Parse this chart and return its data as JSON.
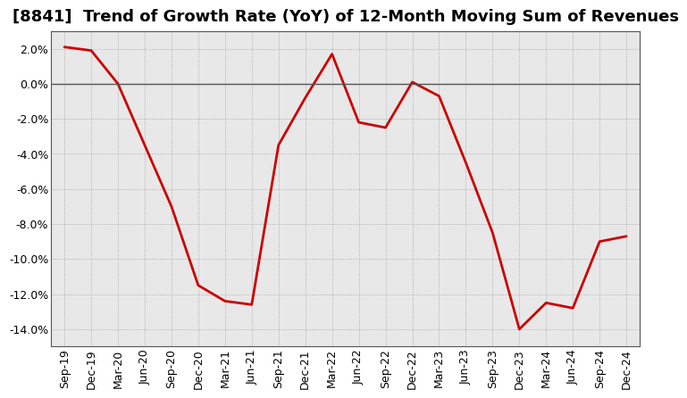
{
  "title": "[8841]  Trend of Growth Rate (YoY) of 12-Month Moving Sum of Revenues",
  "x_labels": [
    "Sep-19",
    "Dec-19",
    "Mar-20",
    "Jun-20",
    "Sep-20",
    "Dec-20",
    "Mar-21",
    "Jun-21",
    "Sep-21",
    "Dec-21",
    "Mar-22",
    "Jun-22",
    "Sep-22",
    "Dec-22",
    "Mar-23",
    "Jun-23",
    "Sep-23",
    "Dec-23",
    "Mar-24",
    "Jun-24",
    "Sep-24",
    "Dec-24"
  ],
  "y_values": [
    2.1,
    1.9,
    0.0,
    -3.5,
    -7.0,
    -11.5,
    -12.4,
    -12.6,
    -3.5,
    -0.8,
    1.7,
    -2.2,
    -2.5,
    0.1,
    -0.7,
    -4.5,
    -8.5,
    -14.0,
    -12.5,
    -12.8,
    -9.0,
    -8.7
  ],
  "line_color": "#cc0000",
  "line_width": 2.0,
  "ylim": [
    -15.0,
    3.0
  ],
  "yticks": [
    2.0,
    0.0,
    -2.0,
    -4.0,
    -6.0,
    -8.0,
    -10.0,
    -12.0,
    -14.0
  ],
  "bg_plot_color": "#e8e8e8",
  "background_color": "#ffffff",
  "grid_color": "#999999",
  "title_fontsize": 13,
  "axis_fontsize": 9
}
